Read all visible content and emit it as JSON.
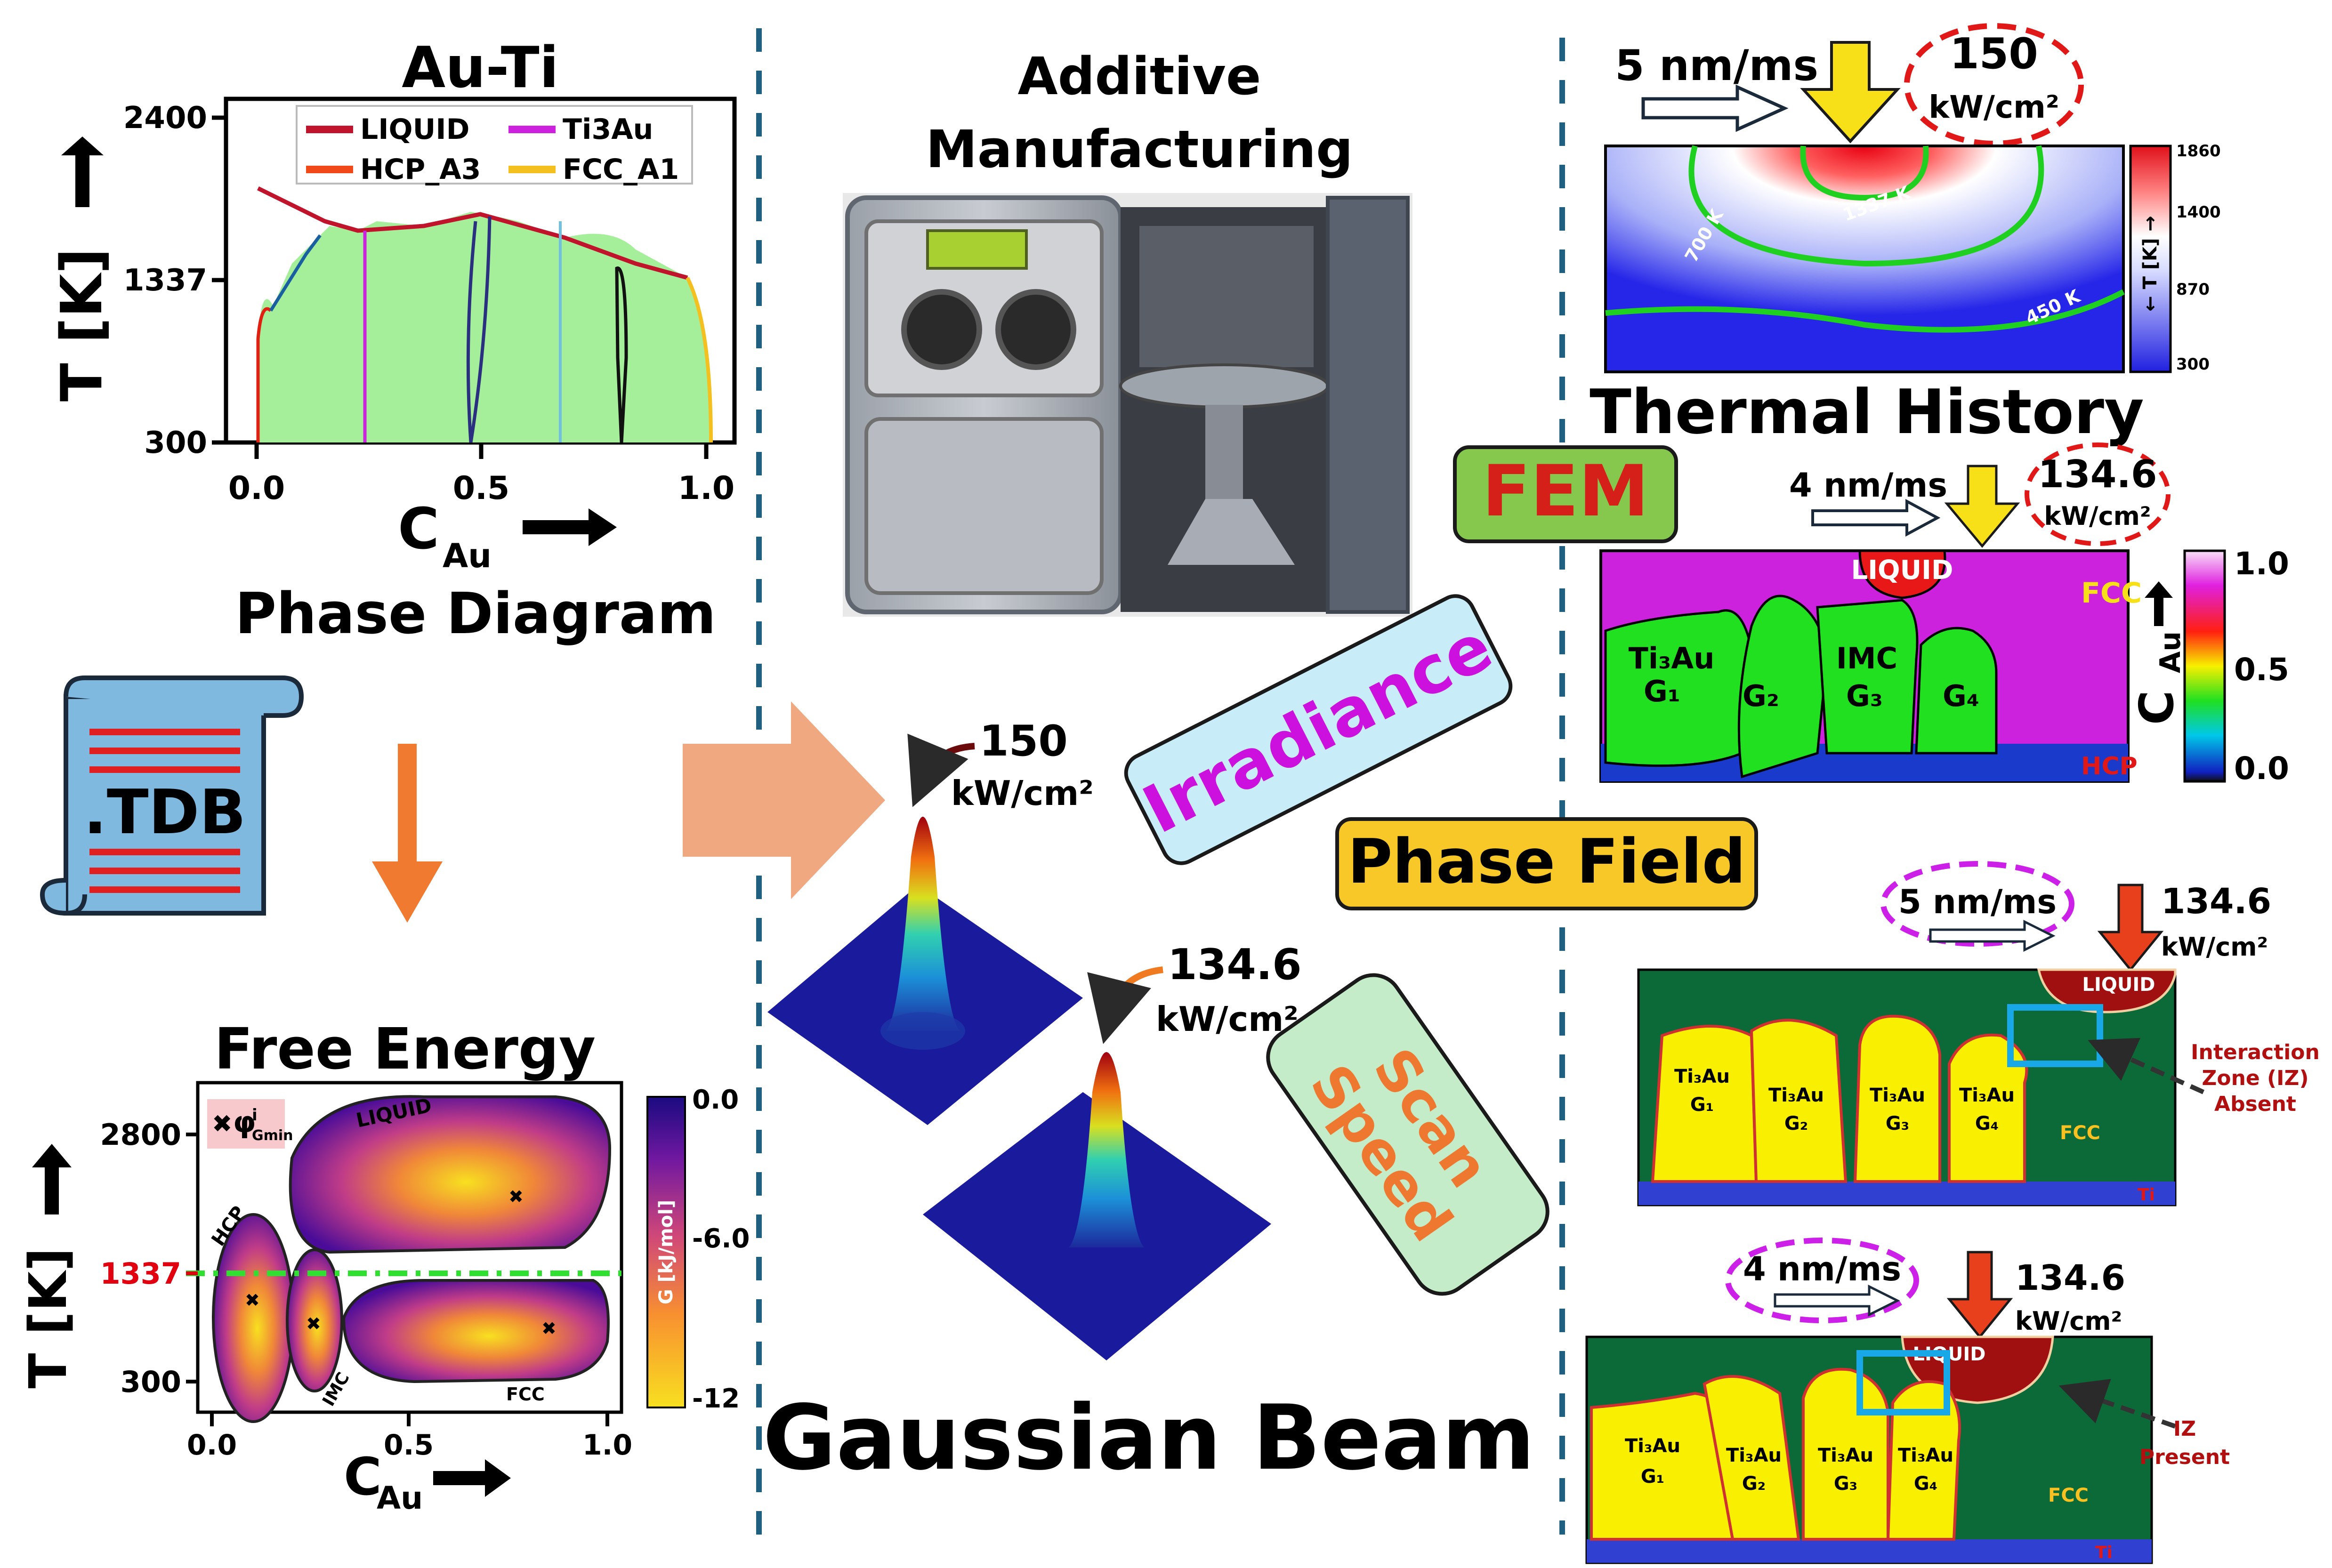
{
  "phase_diagram": {
    "title": "Au-Ti",
    "ylabel": "T [K]",
    "xlabel_main": "C",
    "xlabel_sub": "Au",
    "caption": "Phase Diagram",
    "y_ticks": [
      "2400",
      "1337",
      "300"
    ],
    "x_ticks": [
      "0.0",
      "0.5",
      "1.0"
    ],
    "legend": [
      {
        "label": "LIQUID",
        "color": "#c0142c"
      },
      {
        "label": "Ti3Au",
        "color": "#cc22dd"
      },
      {
        "label": "HCP_A3",
        "color": "#f04818"
      },
      {
        "label": "FCC_A1",
        "color": "#f4c020"
      }
    ]
  },
  "tdb": {
    "label": ".TDB"
  },
  "free_energy": {
    "title": "Free Energy",
    "ylabel": "T [K]",
    "xlabel_main": "C",
    "xlabel_sub": "Au",
    "y_ticks": [
      "2800",
      "1337",
      "300"
    ],
    "x_ticks": [
      "0.0",
      "0.5",
      "1.0"
    ],
    "phase_labels": [
      "LIQUID",
      "HCP",
      "IMC",
      "FCC"
    ],
    "gmin_label": "φ",
    "gmin_sup": "i",
    "gmin_sub": "Gmin",
    "colorbar_label": "G [kJ/mol]",
    "colorbar_ticks": [
      "0.0",
      "-6.0",
      "-12"
    ]
  },
  "additive": {
    "title_line1": "Additive",
    "title_line2": "Manufacturing"
  },
  "gaussian": {
    "title": "Gaussian Beam",
    "beam1_value": "150",
    "beam1_unit": "kW/cm²",
    "beam2_value": "134.6",
    "beam2_unit": "kW/cm²"
  },
  "badges": {
    "irradiance": "Irradiance",
    "scan": "Scan",
    "speed": "Speed",
    "fem": "FEM",
    "phase_field": "Phase Field"
  },
  "thermal": {
    "speed": "5 nm/ms",
    "power_value": "150",
    "power_unit": "kW/cm²",
    "caption": "Thermal History",
    "contours": [
      "1337 K",
      "700 K",
      "450 K"
    ],
    "colorbar_ticks": [
      "1860",
      "1400",
      "870",
      "300"
    ],
    "colorbar_label": "← T [K] →"
  },
  "fem_panel": {
    "speed": "4 nm/ms",
    "power_value": "134.6",
    "power_unit": "kW/cm²",
    "liquid": "LIQUID",
    "fcc": "FCC",
    "hcp": "HCP",
    "grains": [
      {
        "line1": "Ti₃Au",
        "line2": "G₁"
      },
      {
        "line1": "",
        "line2": "G₂"
      },
      {
        "line1": "IMC",
        "line2": "G₃"
      },
      {
        "line1": "",
        "line2": "G₄"
      }
    ],
    "colorbar_ticks": [
      "1.0",
      "0.5",
      "0.0"
    ],
    "colorbar_main": "C",
    "colorbar_sub": "Au"
  },
  "pf_top": {
    "speed": "5 nm/ms",
    "power_value": "134.6",
    "power_unit": "kW/cm²",
    "liquid": "LIQUID",
    "fcc": "FCC",
    "ti": "Ti",
    "grains": [
      {
        "line1": "Ti₃Au",
        "line2": "G₁"
      },
      {
        "line1": "Ti₃Au",
        "line2": "G₂"
      },
      {
        "line1": "Ti₃Au",
        "line2": "G₃"
      },
      {
        "line1": "Ti₃Au",
        "line2": "G₄"
      }
    ],
    "note": [
      "Interaction",
      "Zone (IZ)",
      "Absent"
    ]
  },
  "pf_bottom": {
    "speed": "4 nm/ms",
    "power_value": "134.6",
    "power_unit": "kW/cm²",
    "liquid": "LIQUID",
    "fcc": "FCC",
    "ti": "Ti",
    "grains": [
      {
        "line1": "Ti₃Au",
        "line2": "G₁"
      },
      {
        "line1": "Ti₃Au",
        "line2": "G₂"
      },
      {
        "line1": "Ti₃Au",
        "line2": "G₃"
      },
      {
        "line1": "Ti₃Au",
        "line2": "G₄"
      }
    ],
    "note": [
      "IZ",
      "Present"
    ]
  }
}
